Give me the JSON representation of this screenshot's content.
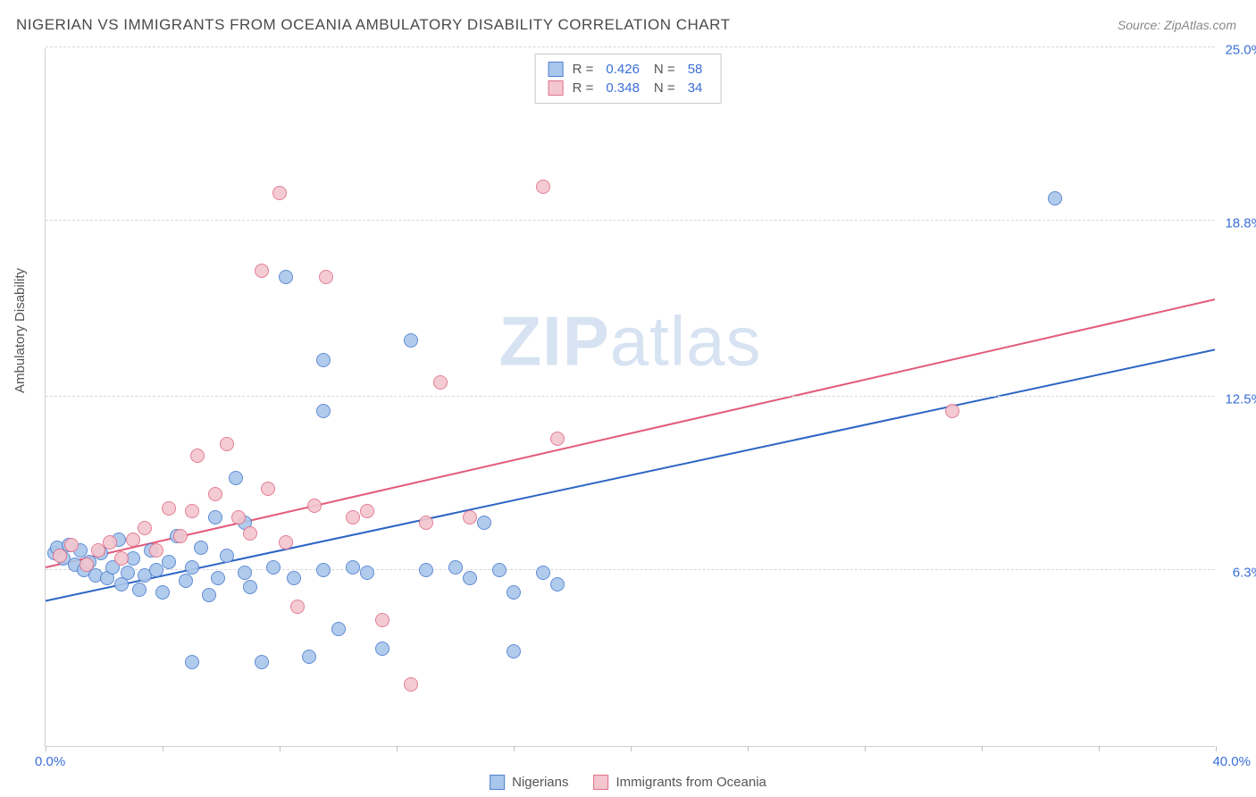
{
  "title": "NIGERIAN VS IMMIGRANTS FROM OCEANIA AMBULATORY DISABILITY CORRELATION CHART",
  "source_label": "Source: ZipAtlas.com",
  "y_axis_label": "Ambulatory Disability",
  "watermark": {
    "bold": "ZIP",
    "rest": "atlas"
  },
  "chart": {
    "type": "scatter",
    "xlim": [
      0,
      40
    ],
    "ylim": [
      0,
      25
    ],
    "x_min_label": "0.0%",
    "x_max_label": "40.0%",
    "y_ticks": [
      {
        "value": 6.3,
        "label": "6.3%"
      },
      {
        "value": 12.5,
        "label": "12.5%"
      },
      {
        "value": 18.8,
        "label": "18.8%"
      },
      {
        "value": 25.0,
        "label": "25.0%"
      }
    ],
    "x_tick_positions": [
      0,
      4,
      8,
      12,
      16,
      20,
      24,
      28,
      32,
      36,
      40
    ],
    "background_color": "#ffffff",
    "grid_color": "#d8d8d8",
    "marker_radius": 8,
    "marker_stroke_width": 1.5,
    "series": [
      {
        "id": "nigerians",
        "label": "Nigerians",
        "fill_color": "#a9c6ec",
        "stroke_color": "#4f81d0",
        "r_value": "0.426",
        "n_value": "58",
        "trend": {
          "x1": 0,
          "y1": 5.2,
          "x2": 40,
          "y2": 14.2,
          "color": "#2b64c4",
          "width": 2
        },
        "points": [
          {
            "x": 0.3,
            "y": 6.9
          },
          {
            "x": 0.4,
            "y": 7.1
          },
          {
            "x": 0.6,
            "y": 6.7
          },
          {
            "x": 0.8,
            "y": 7.2
          },
          {
            "x": 1.0,
            "y": 6.5
          },
          {
            "x": 1.2,
            "y": 7.0
          },
          {
            "x": 1.3,
            "y": 6.3
          },
          {
            "x": 1.5,
            "y": 6.6
          },
          {
            "x": 1.7,
            "y": 6.1
          },
          {
            "x": 1.9,
            "y": 6.9
          },
          {
            "x": 2.1,
            "y": 6.0
          },
          {
            "x": 2.3,
            "y": 6.4
          },
          {
            "x": 2.5,
            "y": 7.4
          },
          {
            "x": 2.6,
            "y": 5.8
          },
          {
            "x": 2.8,
            "y": 6.2
          },
          {
            "x": 3.0,
            "y": 6.7
          },
          {
            "x": 3.2,
            "y": 5.6
          },
          {
            "x": 3.4,
            "y": 6.1
          },
          {
            "x": 3.6,
            "y": 7.0
          },
          {
            "x": 3.8,
            "y": 6.3
          },
          {
            "x": 4.0,
            "y": 5.5
          },
          {
            "x": 4.2,
            "y": 6.6
          },
          {
            "x": 4.5,
            "y": 7.5
          },
          {
            "x": 4.8,
            "y": 5.9
          },
          {
            "x": 5.0,
            "y": 6.4
          },
          {
            "x": 5.3,
            "y": 7.1
          },
          {
            "x": 5.6,
            "y": 5.4
          },
          {
            "x": 5.9,
            "y": 6.0
          },
          {
            "x": 5.0,
            "y": 3.0
          },
          {
            "x": 6.2,
            "y": 6.8
          },
          {
            "x": 6.5,
            "y": 9.6
          },
          {
            "x": 6.8,
            "y": 6.2
          },
          {
            "x": 7.0,
            "y": 5.7
          },
          {
            "x": 7.4,
            "y": 3.0
          },
          {
            "x": 7.8,
            "y": 6.4
          },
          {
            "x": 8.2,
            "y": 16.8
          },
          {
            "x": 8.5,
            "y": 6.0
          },
          {
            "x": 9.0,
            "y": 3.2
          },
          {
            "x": 9.5,
            "y": 13.8
          },
          {
            "x": 9.5,
            "y": 6.3
          },
          {
            "x": 9.5,
            "y": 12.0
          },
          {
            "x": 10.0,
            "y": 4.2
          },
          {
            "x": 10.5,
            "y": 6.4
          },
          {
            "x": 11.0,
            "y": 6.2
          },
          {
            "x": 11.5,
            "y": 3.5
          },
          {
            "x": 12.5,
            "y": 14.5
          },
          {
            "x": 13.0,
            "y": 6.3
          },
          {
            "x": 14.0,
            "y": 6.4
          },
          {
            "x": 14.5,
            "y": 6.0
          },
          {
            "x": 15.5,
            "y": 6.3
          },
          {
            "x": 16.0,
            "y": 3.4
          },
          {
            "x": 16.0,
            "y": 5.5
          },
          {
            "x": 17.0,
            "y": 6.2
          },
          {
            "x": 17.5,
            "y": 5.8
          },
          {
            "x": 15.0,
            "y": 8.0
          },
          {
            "x": 34.5,
            "y": 19.6
          },
          {
            "x": 5.8,
            "y": 8.2
          },
          {
            "x": 6.8,
            "y": 8.0
          }
        ]
      },
      {
        "id": "oceania",
        "label": "Immigrants from Oceania",
        "fill_color": "#f3c6ce",
        "stroke_color": "#e1718a",
        "r_value": "0.348",
        "n_value": "34",
        "trend": {
          "x1": 0,
          "y1": 6.4,
          "x2": 40,
          "y2": 16.0,
          "color": "#e35a7a",
          "width": 2
        },
        "points": [
          {
            "x": 0.5,
            "y": 6.8
          },
          {
            "x": 0.9,
            "y": 7.2
          },
          {
            "x": 1.4,
            "y": 6.5
          },
          {
            "x": 1.8,
            "y": 7.0
          },
          {
            "x": 2.2,
            "y": 7.3
          },
          {
            "x": 2.6,
            "y": 6.7
          },
          {
            "x": 3.0,
            "y": 7.4
          },
          {
            "x": 3.4,
            "y": 7.8
          },
          {
            "x": 3.8,
            "y": 7.0
          },
          {
            "x": 4.2,
            "y": 8.5
          },
          {
            "x": 4.6,
            "y": 7.5
          },
          {
            "x": 5.0,
            "y": 8.4
          },
          {
            "x": 5.2,
            "y": 10.4
          },
          {
            "x": 5.8,
            "y": 9.0
          },
          {
            "x": 6.2,
            "y": 10.8
          },
          {
            "x": 6.6,
            "y": 8.2
          },
          {
            "x": 7.0,
            "y": 7.6
          },
          {
            "x": 7.4,
            "y": 17.0
          },
          {
            "x": 7.6,
            "y": 9.2
          },
          {
            "x": 8.0,
            "y": 19.8
          },
          {
            "x": 8.2,
            "y": 7.3
          },
          {
            "x": 8.6,
            "y": 5.0
          },
          {
            "x": 9.2,
            "y": 8.6
          },
          {
            "x": 9.6,
            "y": 16.8
          },
          {
            "x": 10.5,
            "y": 8.2
          },
          {
            "x": 11.0,
            "y": 8.4
          },
          {
            "x": 11.5,
            "y": 4.5
          },
          {
            "x": 12.5,
            "y": 2.2
          },
          {
            "x": 13.0,
            "y": 8.0
          },
          {
            "x": 13.5,
            "y": 13.0
          },
          {
            "x": 14.5,
            "y": 8.2
          },
          {
            "x": 17.0,
            "y": 20.0
          },
          {
            "x": 17.5,
            "y": 11.0
          },
          {
            "x": 31.0,
            "y": 12.0
          }
        ]
      }
    ]
  },
  "legend_top": {
    "r_label": "R =",
    "n_label": "N ="
  }
}
